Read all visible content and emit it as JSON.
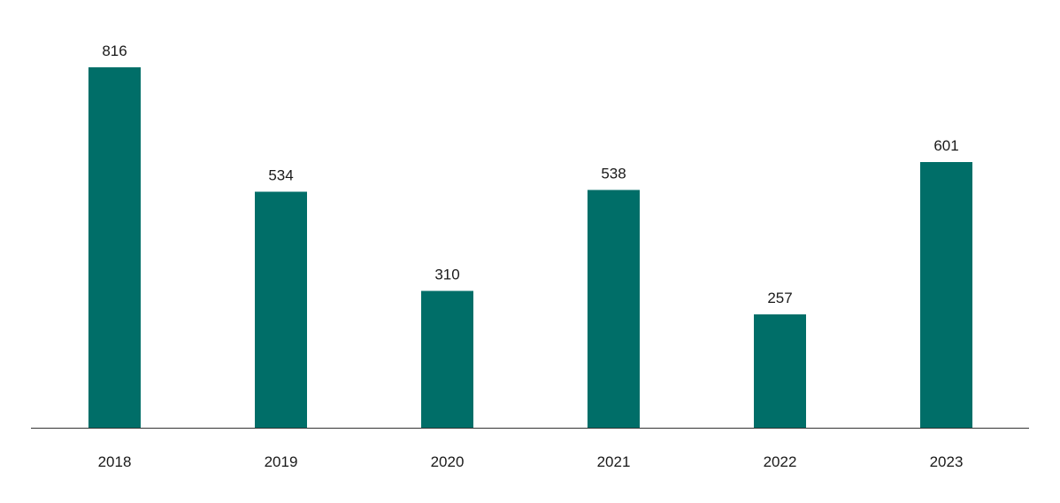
{
  "chart_data": {
    "type": "bar",
    "categories": [
      "2018",
      "2019",
      "2020",
      "2021",
      "2022",
      "2023"
    ],
    "values": [
      816,
      534,
      310,
      538,
      257,
      601
    ],
    "data_labels": [
      "816",
      "534",
      "310",
      "538",
      "257",
      "601"
    ],
    "title": "",
    "xlabel": "",
    "ylabel": "",
    "ylim": [
      0,
      816
    ],
    "grid": false,
    "legend": "none",
    "colors": {
      "bar": "#006e68",
      "axis": "#333333",
      "text": "#1a1a1a"
    }
  }
}
